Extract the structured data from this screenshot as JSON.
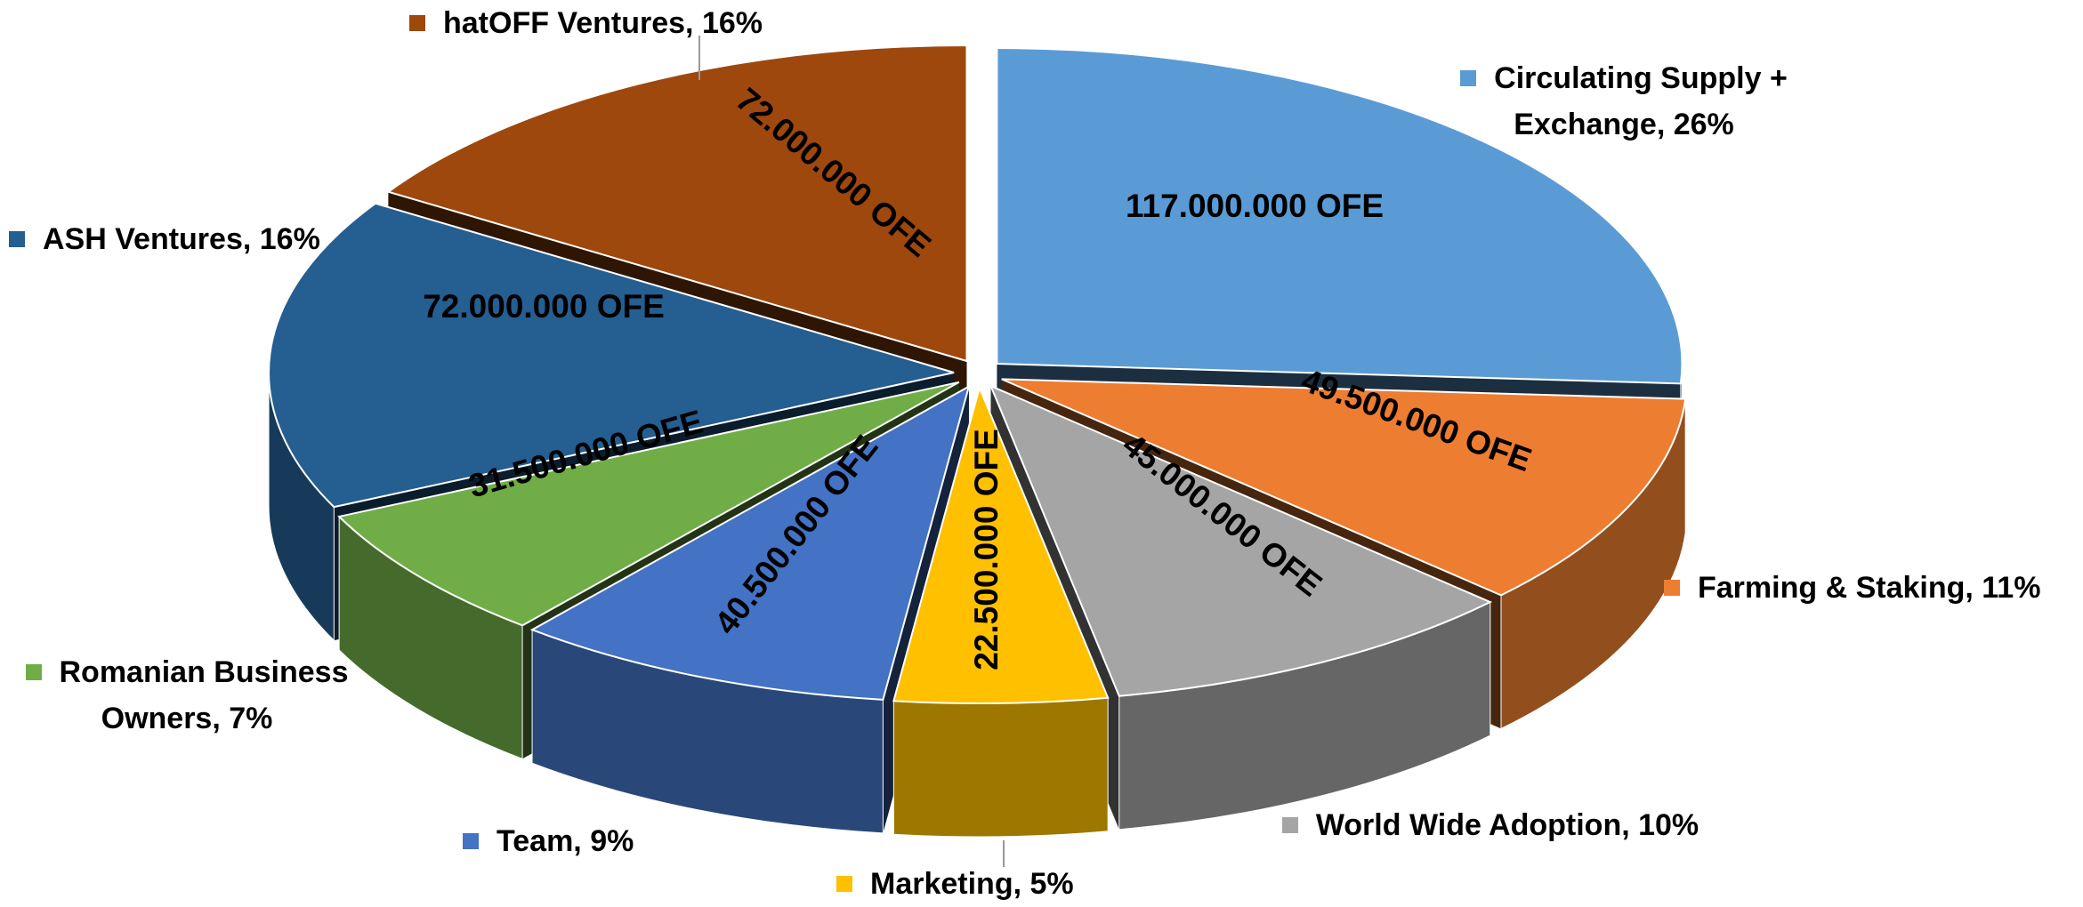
{
  "chart_data": {
    "type": "pie3d",
    "categories": [
      "Circulating Supply + Exchange, 26%",
      "Farming & Staking, 11%",
      "World Wide Adoption, 10%",
      "Marketing, 5%",
      "Team, 9%",
      "Romanian Business Owners, 7%",
      "ASH Ventures, 16%",
      "hatOFF Ventures, 16%"
    ],
    "values": [
      117000000,
      49500000,
      45000000,
      22500000,
      40500000,
      31500000,
      72000000,
      72000000
    ],
    "value_labels": [
      "117.000.000 OFE",
      "49.500.000 OFE",
      "45.000.000 OFE",
      "22.500.000 OFE",
      "40.500.000 OFE",
      "31.500.000 OFE",
      "72.000.000 OFE",
      "72.000.000 OFE"
    ],
    "colors": [
      "#5b9bd5",
      "#ed7d31",
      "#a5a5a5",
      "#ffc000",
      "#4472c4",
      "#70ad47",
      "#255e91",
      "#9e480e"
    ]
  }
}
